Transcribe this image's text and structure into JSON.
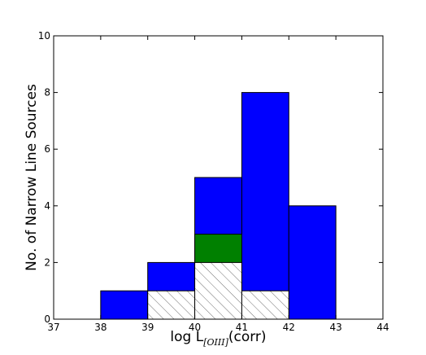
{
  "chart_data": {
    "type": "bar",
    "xlabel_main": "log L",
    "xlabel_sub": "[OIII]",
    "xlabel_suffix": "(corr)",
    "ylabel": "No. of Narrow Line Sources",
    "xlim": [
      37,
      44
    ],
    "ylim": [
      0,
      10
    ],
    "x_ticks": [
      "37",
      "38",
      "39",
      "40",
      "41",
      "42",
      "43",
      "44"
    ],
    "y_ticks": [
      "0",
      "2",
      "4",
      "6",
      "8",
      "10"
    ],
    "bin_edges": [
      38,
      39,
      40,
      41,
      42,
      43
    ],
    "series": [
      {
        "color": "#0000ff",
        "fill": "solid",
        "values": [
          1,
          2,
          5,
          8,
          4
        ]
      },
      {
        "color": "#008000",
        "fill": "solid",
        "values": [
          0,
          0,
          3,
          0,
          0
        ]
      },
      {
        "color": "#ffffff",
        "fill": "hatched",
        "values": [
          0,
          1,
          2,
          1,
          0
        ]
      }
    ]
  }
}
